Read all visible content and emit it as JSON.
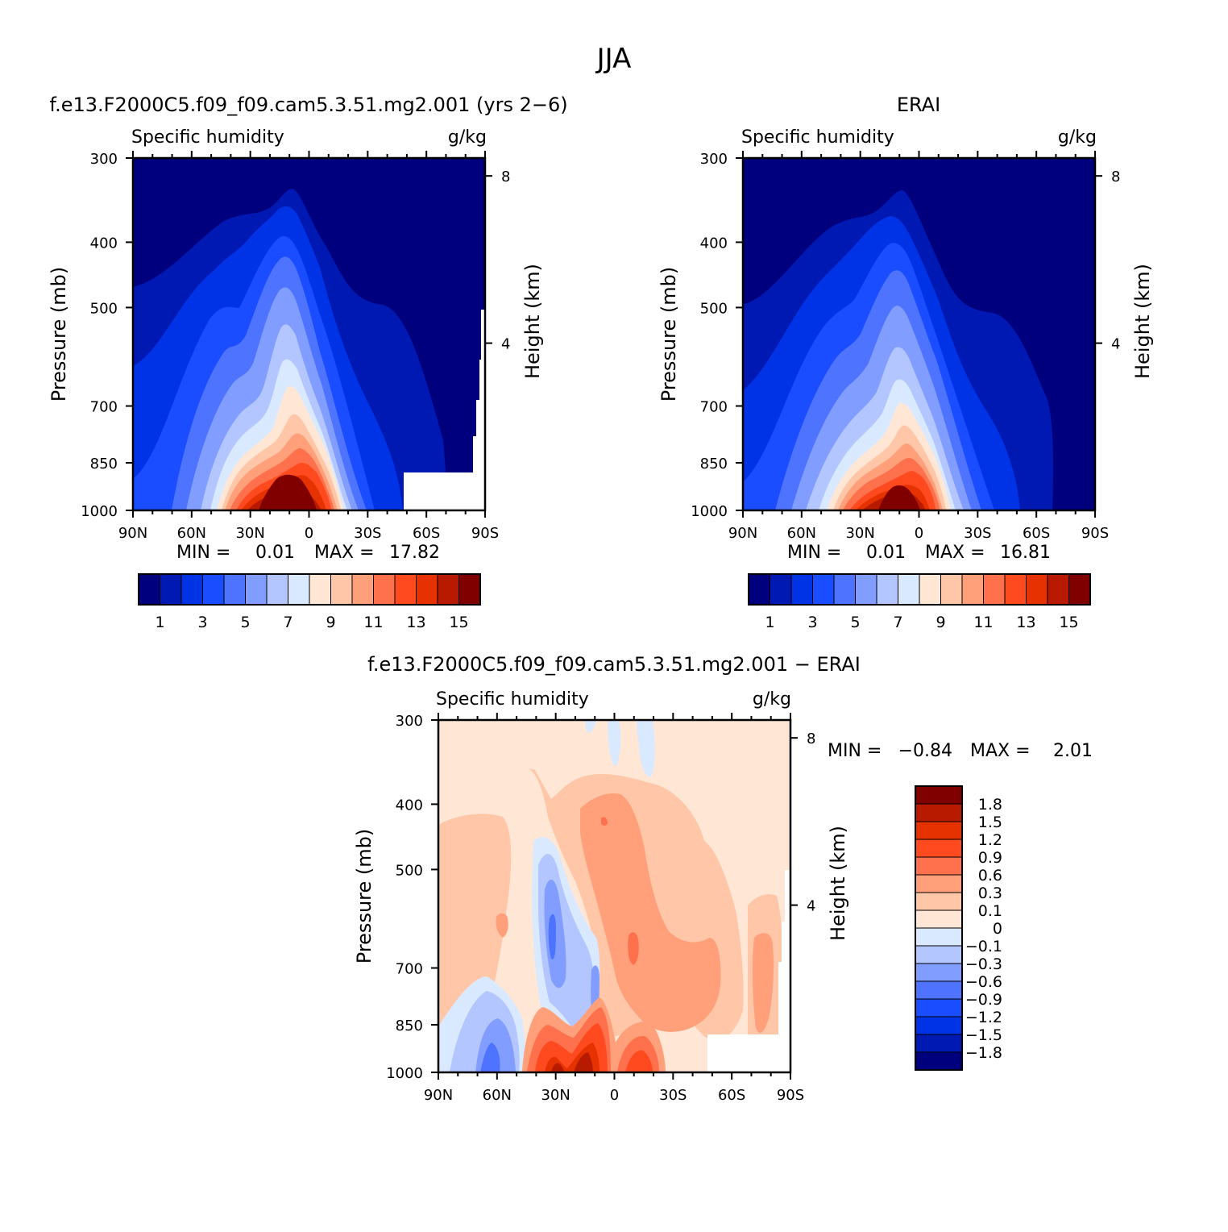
{
  "figure": {
    "title": "JJA",
    "panel_titles": [
      "f.e13.F2000C5.f09_f09.cam5.3.51.mg2.001 (yrs 2−6)",
      "ERAI",
      "f.e13.F2000C5.f09_f09.cam5.3.51.mg2.001 − ERAI"
    ]
  },
  "chart_data": [
    {
      "type": "contour",
      "variable": "Specific humidity",
      "units": "g/kg",
      "ylabel": "Pressure (mb)",
      "ylabel_right": "Height (km)",
      "x_ticks": [
        "90N",
        "60N",
        "30N",
        "0",
        "30S",
        "60S",
        "90S"
      ],
      "x_values": [
        90,
        60,
        30,
        0,
        -30,
        -60,
        -90
      ],
      "y_ticks": [
        300,
        400,
        500,
        700,
        850,
        1000
      ],
      "height_ticks": [
        8,
        4
      ],
      "ylim": [
        1000,
        300
      ],
      "min_label": "MIN =",
      "max_label": "MAX =",
      "min": "0.01",
      "max": "17.82",
      "colorbar_labels": [
        "1",
        "3",
        "5",
        "7",
        "9",
        "11",
        "13",
        "15"
      ],
      "levels": [
        0,
        1,
        2,
        3,
        4,
        5,
        6,
        7,
        8,
        9,
        10,
        11,
        12,
        13,
        14,
        15
      ],
      "colors": [
        "#00007f",
        "#0019b3",
        "#0033e6",
        "#1a4dff",
        "#4d73ff",
        "#809dff",
        "#b3c6ff",
        "#d9e9ff",
        "#ffe6d5",
        "#ffc6a8",
        "#ffa07a",
        "#ff704d",
        "#ff4a1f",
        "#e63200",
        "#b81a00",
        "#800000"
      ],
      "peak": {
        "lat": 8,
        "p": 1000,
        "value": 17.82
      }
    },
    {
      "type": "contour",
      "variable": "Specific humidity",
      "units": "g/kg",
      "ylabel": "Pressure (mb)",
      "ylabel_right": "Height (km)",
      "x_ticks": [
        "90N",
        "60N",
        "30N",
        "0",
        "30S",
        "60S",
        "90S"
      ],
      "x_values": [
        90,
        60,
        30,
        0,
        -30,
        -60,
        -90
      ],
      "y_ticks": [
        300,
        400,
        500,
        700,
        850,
        1000
      ],
      "height_ticks": [
        8,
        4
      ],
      "ylim": [
        1000,
        300
      ],
      "min_label": "MIN =",
      "max_label": "MAX =",
      "min": "0.01",
      "max": "16.81",
      "colorbar_labels": [
        "1",
        "3",
        "5",
        "7",
        "9",
        "11",
        "13",
        "15"
      ],
      "levels": [
        0,
        1,
        2,
        3,
        4,
        5,
        6,
        7,
        8,
        9,
        10,
        11,
        12,
        13,
        14,
        15
      ],
      "colors": [
        "#00007f",
        "#0019b3",
        "#0033e6",
        "#1a4dff",
        "#4d73ff",
        "#809dff",
        "#b3c6ff",
        "#d9e9ff",
        "#ffe6d5",
        "#ffc6a8",
        "#ffa07a",
        "#ff704d",
        "#ff4a1f",
        "#e63200",
        "#b81a00",
        "#800000"
      ],
      "peak": {
        "lat": 8,
        "p": 1000,
        "value": 16.81
      }
    },
    {
      "type": "contour",
      "variable": "Specific humidity",
      "units": "g/kg",
      "ylabel": "Pressure (mb)",
      "ylabel_right": "Height (km)",
      "x_ticks": [
        "90N",
        "60N",
        "30N",
        "0",
        "30S",
        "60S",
        "90S"
      ],
      "x_values": [
        90,
        60,
        30,
        0,
        -30,
        -60,
        -90
      ],
      "y_ticks": [
        300,
        400,
        500,
        700,
        850,
        1000
      ],
      "height_ticks": [
        8,
        4
      ],
      "ylim": [
        1000,
        300
      ],
      "min_label": "MIN =",
      "max_label": "MAX =",
      "min": "−0.84",
      "max": "2.01",
      "colorbar_labels": [
        "1.8",
        "1.5",
        "1.2",
        "0.9",
        "0.6",
        "0.3",
        "0.1",
        "0",
        "−0.1",
        "−0.3",
        "−0.6",
        "−0.9",
        "−1.2",
        "−1.5",
        "−1.8"
      ],
      "levels": [
        -1.8,
        -1.5,
        -1.2,
        -0.9,
        -0.6,
        -0.3,
        -0.1,
        0,
        0.1,
        0.3,
        0.6,
        0.9,
        1.2,
        1.5,
        1.8
      ],
      "colors": [
        "#800000",
        "#b81a00",
        "#e63200",
        "#ff4a1f",
        "#ff704d",
        "#ffa07a",
        "#ffc6a8",
        "#ffe6d5",
        "#d9e9ff",
        "#b3c6ff",
        "#809dff",
        "#4d73ff",
        "#1a4dff",
        "#0033e6",
        "#0019b3",
        "#00007f"
      ]
    }
  ]
}
